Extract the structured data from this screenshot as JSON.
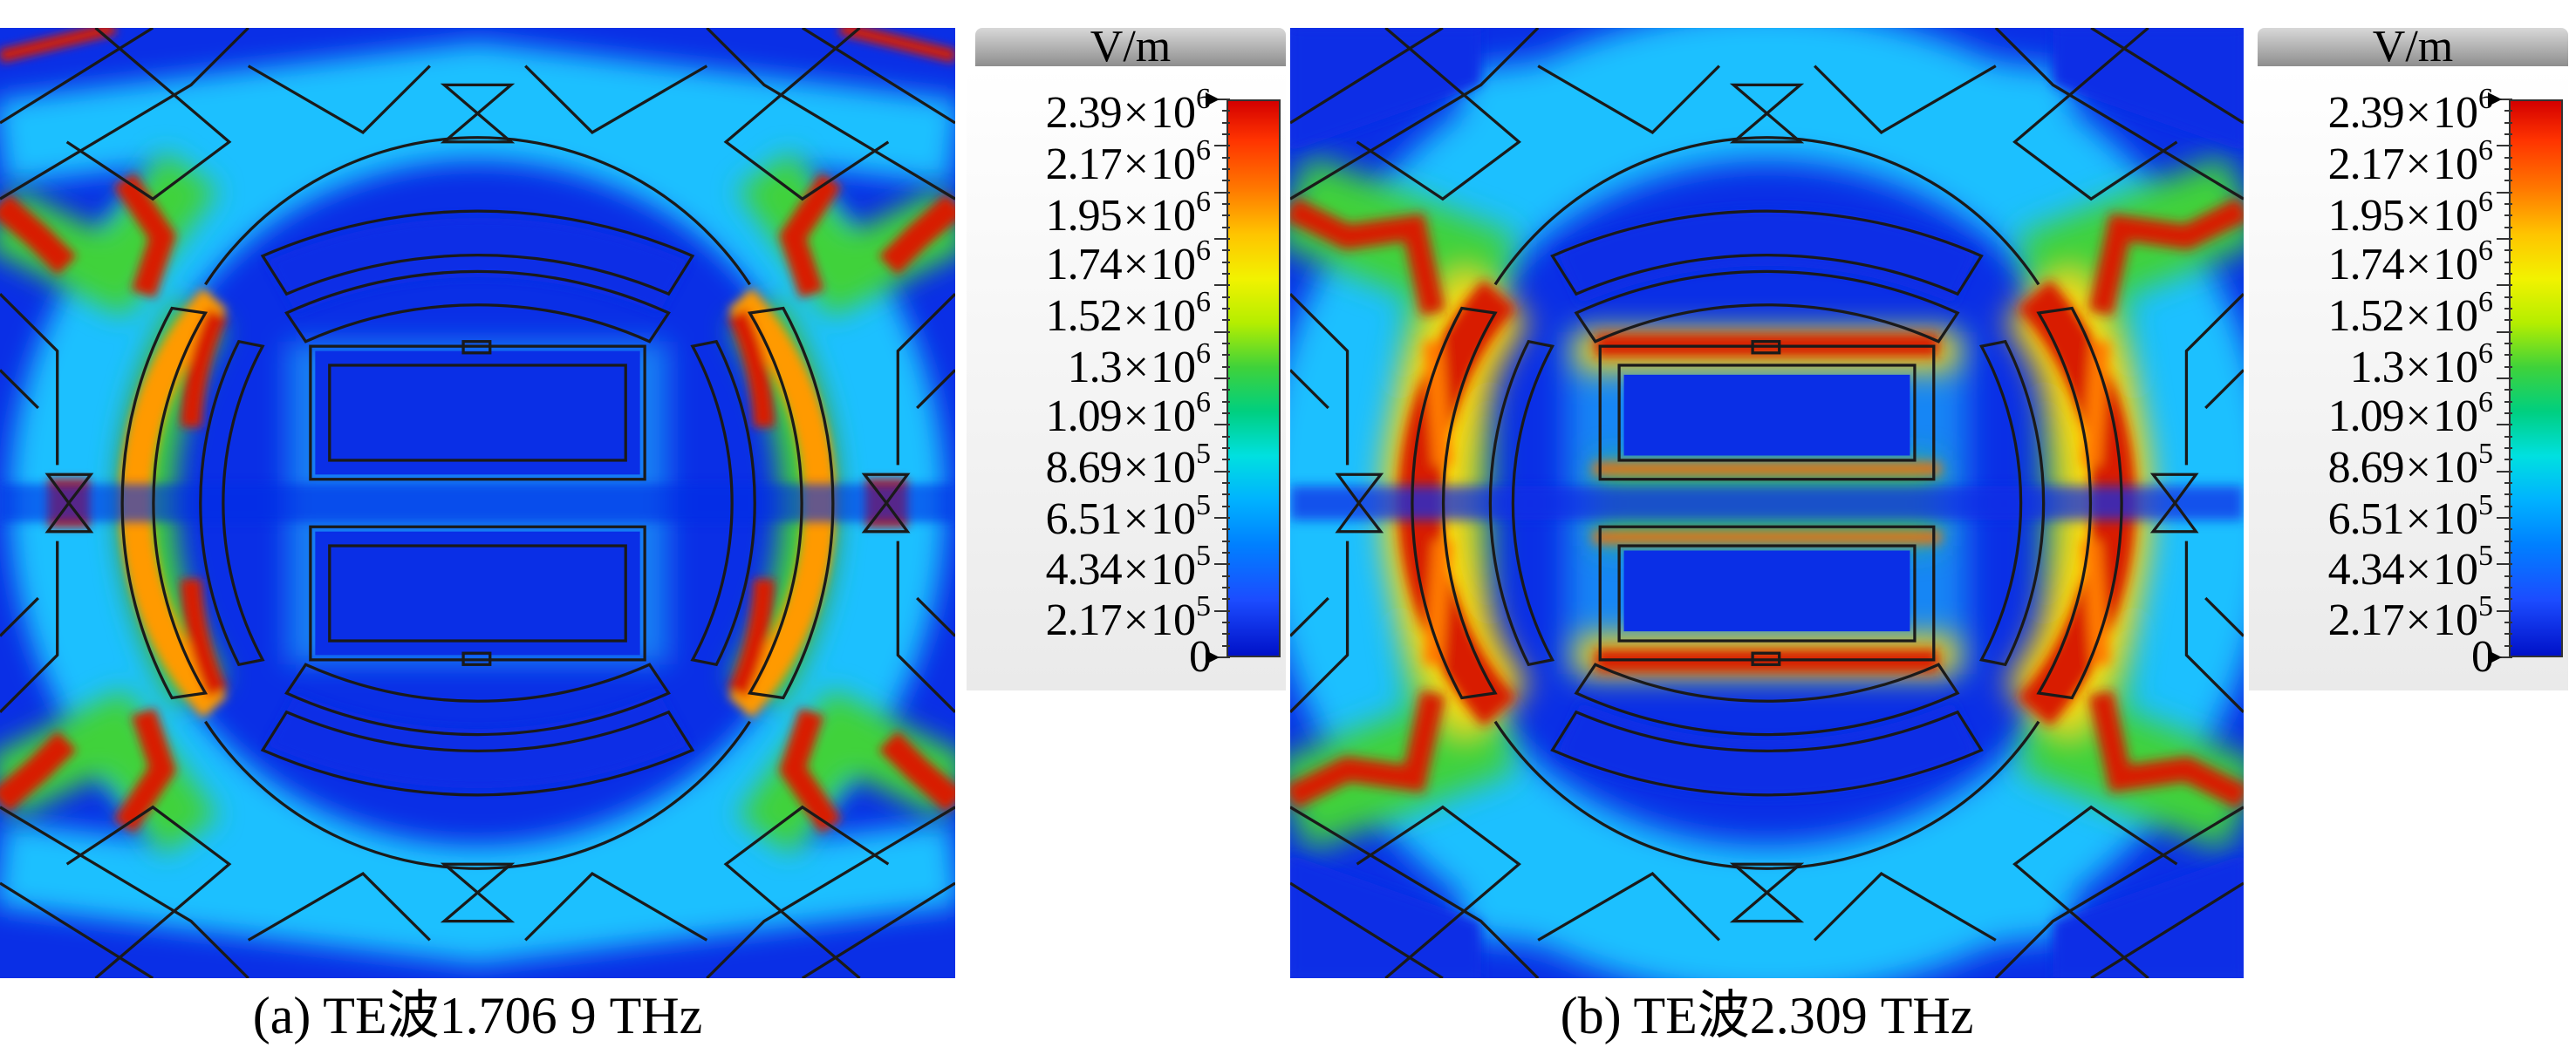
{
  "colors": {
    "field_low": "#0a2fe6",
    "field_cyan": "#1ec0ff",
    "field_green": "#3fd23a",
    "field_yellow": "#ffe200",
    "field_red": "#d81a00",
    "outline": "#1a1a1a"
  },
  "legend": {
    "unit": "V/m",
    "ticks": [
      {
        "mantissa": "2.39",
        "times": "×",
        "base": "10",
        "exp": "6",
        "value": 2390000
      },
      {
        "mantissa": "2.17",
        "times": "×",
        "base": "10",
        "exp": "6",
        "value": 2170000
      },
      {
        "mantissa": "1.95",
        "times": "×",
        "base": "10",
        "exp": "6",
        "value": 1950000
      },
      {
        "mantissa": "1.74",
        "times": "×",
        "base": "10",
        "exp": "6",
        "value": 1740000
      },
      {
        "mantissa": "1.52",
        "times": "×",
        "base": "10",
        "exp": "6",
        "value": 1520000
      },
      {
        "mantissa": "1.3",
        "times": "×",
        "base": "10",
        "exp": "6",
        "value": 1300000
      },
      {
        "mantissa": "1.09",
        "times": "×",
        "base": "10",
        "exp": "6",
        "value": 1090000
      },
      {
        "mantissa": "8.69",
        "times": "×",
        "base": "10",
        "exp": "5",
        "value": 869000
      },
      {
        "mantissa": "6.51",
        "times": "×",
        "base": "10",
        "exp": "5",
        "value": 651000
      },
      {
        "mantissa": "4.34",
        "times": "×",
        "base": "10",
        "exp": "5",
        "value": 434000
      },
      {
        "mantissa": "2.17",
        "times": "×",
        "base": "10",
        "exp": "5",
        "value": 217000
      },
      {
        "mantissa": "0",
        "times": "",
        "base": "",
        "exp": "",
        "value": 0
      }
    ]
  },
  "panels": [
    {
      "caption": "(a) TE波1.706 9 THz"
    },
    {
      "caption": "(b) TE波2.309 THz"
    }
  ]
}
